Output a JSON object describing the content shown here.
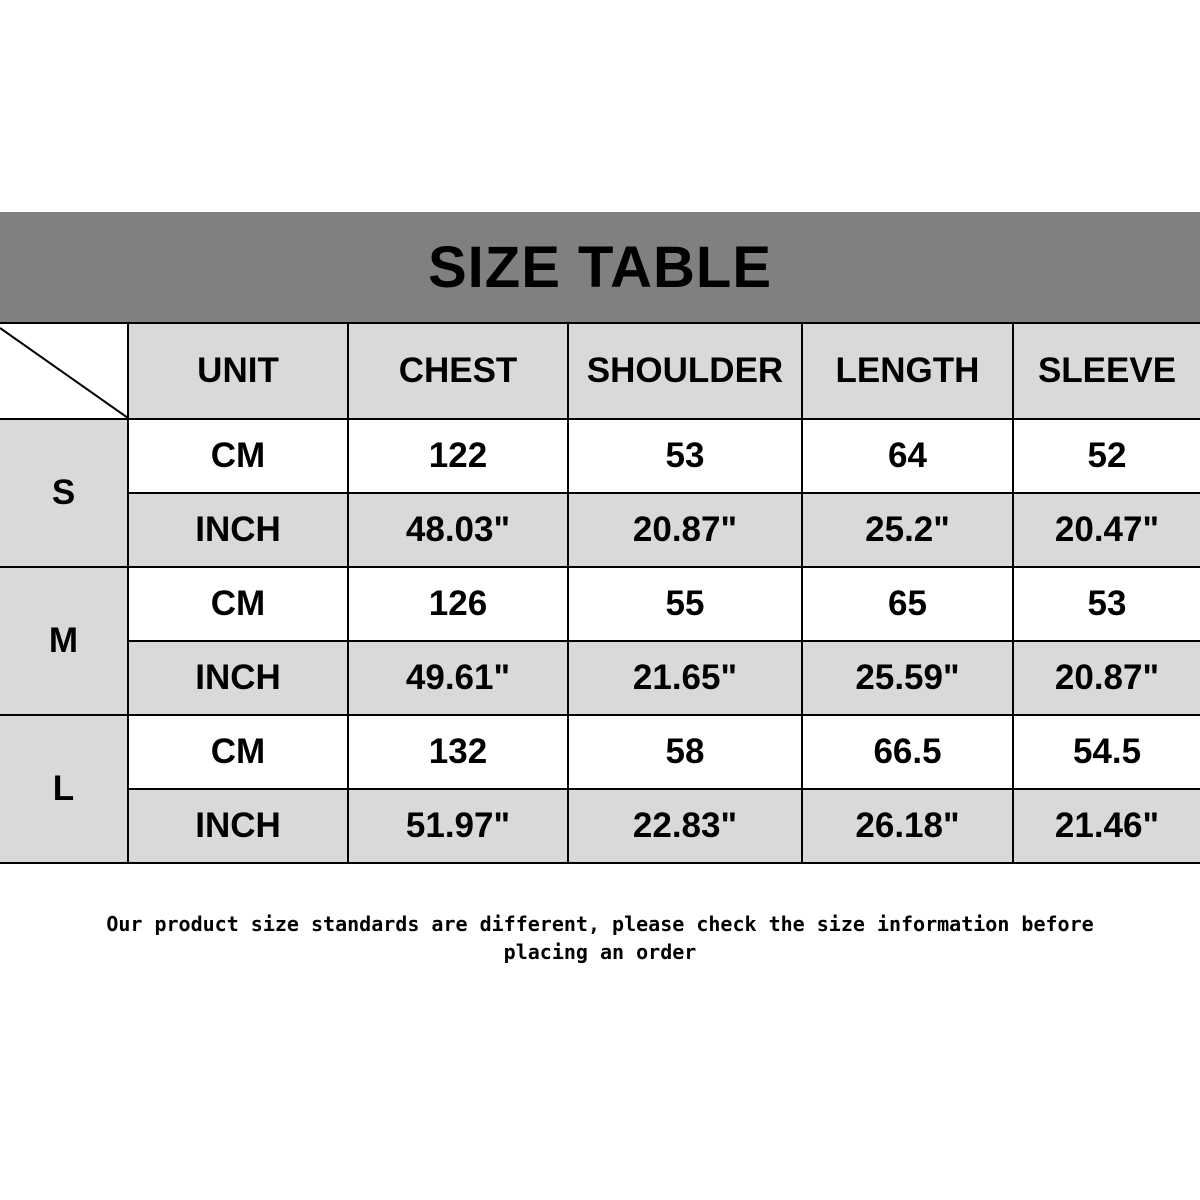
{
  "title": "SIZE TABLE",
  "headers": [
    "UNIT",
    "CHEST",
    "SHOULDER",
    "LENGTH",
    "SLEEVE"
  ],
  "sizes": [
    {
      "size": "S",
      "rows": [
        {
          "unit": "CM",
          "values": [
            "122",
            "53",
            "64",
            "52"
          ]
        },
        {
          "unit": "INCH",
          "values": [
            "48.03\"",
            "20.87\"",
            "25.2\"",
            "20.47\""
          ]
        }
      ]
    },
    {
      "size": "M",
      "rows": [
        {
          "unit": "CM",
          "values": [
            "126",
            "55",
            "65",
            "53"
          ]
        },
        {
          "unit": "INCH",
          "values": [
            "49.61\"",
            "21.65\"",
            "25.59\"",
            "20.87\""
          ]
        }
      ]
    },
    {
      "size": "L",
      "rows": [
        {
          "unit": "CM",
          "values": [
            "132",
            "58",
            "66.5",
            "54.5"
          ]
        },
        {
          "unit": "INCH",
          "values": [
            "51.97\"",
            "22.83\"",
            "26.18\"",
            "21.46\""
          ]
        }
      ]
    }
  ],
  "note_line1": "Our product size standards are different, please check the size information before",
  "note_line2": "placing an order",
  "colors": {
    "banner": "#808080",
    "cell_gray": "#d9d9d9"
  }
}
